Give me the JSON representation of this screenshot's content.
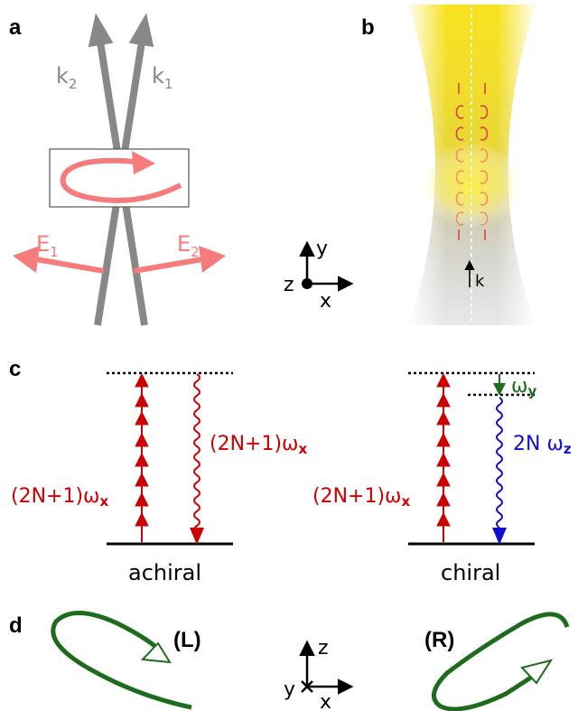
{
  "panels": {
    "a": {
      "label": "a",
      "k2": "k",
      "k2_sub": "2",
      "k1": "k",
      "k1_sub": "1",
      "e1": "E",
      "e1_sub": "1",
      "e2": "E",
      "e2_sub": "2"
    },
    "b": {
      "label": "b",
      "axis_y": "y",
      "axis_z": "z",
      "axis_x": "x",
      "k": "k"
    },
    "c": {
      "label": "c",
      "achiral_pump": "(2N+1)ω",
      "achiral_pump_sub": "x",
      "achiral_emit": "(2N+1)ω",
      "achiral_emit_sub": "x",
      "achiral_caption": "achiral",
      "chiral_pump": "(2N+1)ω",
      "chiral_pump_sub": "x",
      "chiral_wy": "ω",
      "chiral_wy_sub": "y",
      "chiral_emit": "2N ω",
      "chiral_emit_sub": "z",
      "chiral_caption": "chiral"
    },
    "d": {
      "label": "d",
      "left_hand": "(L)",
      "right_hand": "(R)",
      "axis_z": "z",
      "axis_y": "y",
      "axis_x": "x"
    }
  },
  "colors": {
    "beam_gray": "#888888",
    "pink": "#f47c7c",
    "red": "#cc0000",
    "green": "#1d6b1d",
    "blue": "#1010cc",
    "yellow": "#ffeb3b"
  }
}
